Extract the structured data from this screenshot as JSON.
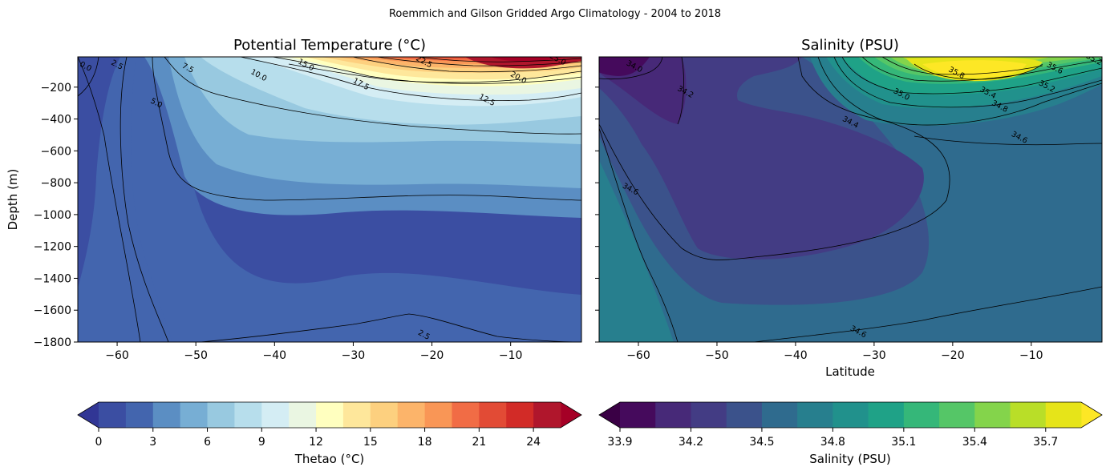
{
  "figure": {
    "suptitle": "Roemmich and Gilson Gridded Argo Climatology - 2004 to 2018"
  },
  "chart_data": [
    {
      "type": "contour",
      "title": "Potential Temperature (°C)",
      "xlabel": "",
      "ylabel": "Depth (m)",
      "xlim": [
        -65,
        -1
      ],
      "ylim": [
        -1800,
        -10
      ],
      "x_ticks": [
        "−60",
        "−50",
        "−40",
        "−30",
        "−20",
        "−10"
      ],
      "x_tick_values": [
        -60,
        -50,
        -40,
        -30,
        -20,
        -10
      ],
      "y_ticks": [
        "−200",
        "−400",
        "−600",
        "−800",
        "−1000",
        "−1200",
        "−1400",
        "−1600",
        "−1800"
      ],
      "y_tick_values": [
        -200,
        -400,
        -600,
        -800,
        -1000,
        -1200,
        -1400,
        -1600,
        -1800
      ],
      "contour_labels": [
        {
          "text": "0.0",
          "lat": -64,
          "depth": -70
        },
        {
          "text": "2.5",
          "lat": -60,
          "depth": -60
        },
        {
          "text": "7.5",
          "lat": -51,
          "depth": -80
        },
        {
          "text": "5.0",
          "lat": -55,
          "depth": -300
        },
        {
          "text": "10.0",
          "lat": -42,
          "depth": -125
        },
        {
          "text": "15.0",
          "lat": -36,
          "depth": -60
        },
        {
          "text": "22.5",
          "lat": -21,
          "depth": -40
        },
        {
          "text": "25.0",
          "lat": -4,
          "depth": -25
        },
        {
          "text": "20.0",
          "lat": -9,
          "depth": -140
        },
        {
          "text": "17.5",
          "lat": -29,
          "depth": -180
        },
        {
          "text": "12.5",
          "lat": -13,
          "depth": -280
        },
        {
          "text": "2.5",
          "lat": -21,
          "depth": -1755
        }
      ],
      "colorbar": {
        "label": "Thetao (°C)",
        "levels": [
          0,
          1.5,
          3,
          4.5,
          6,
          7.5,
          9,
          10.5,
          12,
          13.5,
          15,
          16.5,
          18,
          19.5,
          21,
          22.5,
          24,
          25.5
        ],
        "tick_labels": [
          "0",
          "3",
          "6",
          "9",
          "12",
          "15",
          "18",
          "21",
          "24"
        ],
        "tick_values": [
          0,
          3,
          6,
          9,
          12,
          15,
          18,
          21,
          24
        ],
        "colors": [
          "#3b4ea2",
          "#4365ae",
          "#5b8ec3",
          "#77aed4",
          "#98c9e0",
          "#b7deec",
          "#d4edf4",
          "#eaf6e2",
          "#ffffbf",
          "#fee79b",
          "#fdd07f",
          "#fcb46a",
          "#f99656",
          "#f16c45",
          "#e24b35",
          "#d22b27",
          "#b0162c"
        ],
        "under_color": "#313695",
        "over_color": "#a50026",
        "extend": "both"
      }
    },
    {
      "type": "contour",
      "title": "Salinity (PSU)",
      "xlabel": "Latitude",
      "ylabel": "",
      "xlim": [
        -65,
        -1
      ],
      "ylim": [
        -1800,
        -10
      ],
      "x_ticks": [
        "−60",
        "−50",
        "−40",
        "−30",
        "−20",
        "−10"
      ],
      "x_tick_values": [
        -60,
        -50,
        -40,
        -30,
        -20,
        -10
      ],
      "contour_labels": [
        {
          "text": "34.0",
          "lat": -60.5,
          "depth": -70
        },
        {
          "text": "34.2",
          "lat": -54,
          "depth": -230
        },
        {
          "text": "34.4",
          "lat": -33,
          "depth": -420
        },
        {
          "text": "34.6",
          "lat": -61,
          "depth": -840
        },
        {
          "text": "35.0",
          "lat": -26.5,
          "depth": -245
        },
        {
          "text": "35.8",
          "lat": -19.5,
          "depth": -110
        },
        {
          "text": "35.6",
          "lat": -7,
          "depth": -80
        },
        {
          "text": "35.2",
          "lat": -2,
          "depth": -25
        },
        {
          "text": "35.4",
          "lat": -15.5,
          "depth": -235
        },
        {
          "text": "35.2",
          "lat": -8,
          "depth": -195
        },
        {
          "text": "34.8",
          "lat": -14,
          "depth": -320
        },
        {
          "text": "34.6",
          "lat": -11.5,
          "depth": -515
        },
        {
          "text": "34.6",
          "lat": -32,
          "depth": -1735
        }
      ],
      "colorbar": {
        "label": "Salinity (PSU)",
        "levels": [
          33.9,
          34.05,
          34.2,
          34.35,
          34.5,
          34.65,
          34.8,
          34.95,
          35.1,
          35.25,
          35.4,
          35.55,
          35.7,
          35.85
        ],
        "tick_labels": [
          "33.9",
          "34.2",
          "34.5",
          "34.8",
          "35.1",
          "35.4",
          "35.7"
        ],
        "tick_values": [
          33.9,
          34.2,
          34.5,
          34.8,
          35.1,
          35.4,
          35.7
        ],
        "colors": [
          "#450a5c",
          "#472978",
          "#433c84",
          "#3b528b",
          "#2f6b8e",
          "#277f8e",
          "#21918c",
          "#1fa287",
          "#35b779",
          "#55c667",
          "#84d44b",
          "#b9de28",
          "#e6e419"
        ],
        "under_color": "#3a0045",
        "over_color": "#fde725",
        "extend": "both"
      }
    }
  ]
}
